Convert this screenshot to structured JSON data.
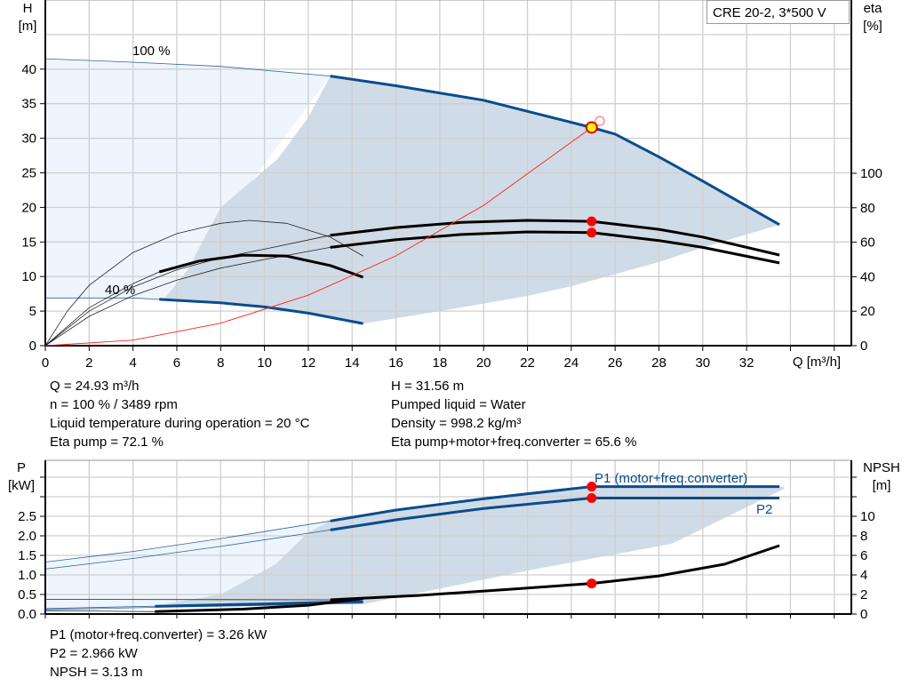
{
  "title": "CRE 20-2, 3*500 V",
  "colors": {
    "head": "#0b4c8c",
    "grid": "#cfcfcf",
    "region_light": "#eef5fd",
    "region_dark": "#cfdbe6",
    "eta": "#000000",
    "system": "#ff2020",
    "marker": "#ff0000",
    "duty_marker": "#ffff00"
  },
  "chart_data": [
    {
      "type": "line",
      "xlabel": "Q [m³/h]",
      "ylabel": "H\n[m]",
      "y2label": "eta\n[%]",
      "xlim": [
        0,
        37
      ],
      "ylim": [
        0,
        50
      ],
      "y2lim": [
        0,
        200
      ],
      "grid": true,
      "x_ticks": [
        "0",
        "2",
        "4",
        "6",
        "8",
        "10",
        "12",
        "14",
        "16",
        "18",
        "20",
        "22",
        "24",
        "26",
        "28",
        "30",
        "32"
      ],
      "y_ticks": [
        "0",
        "5",
        "10",
        "15",
        "20",
        "25",
        "30",
        "35",
        "40"
      ],
      "y2_ticks": [
        "0",
        "20",
        "40",
        "60",
        "80",
        "100"
      ],
      "curve_labels": {
        "max_speed": "100 %",
        "min_speed": "40 %"
      },
      "regions": {
        "light": [
          [
            0,
            41.5
          ],
          [
            4,
            41.0
          ],
          [
            8,
            40.4
          ],
          [
            13,
            39
          ],
          [
            5.4,
            6.7
          ],
          [
            4,
            6.9
          ],
          [
            0,
            6.9
          ]
        ],
        "dark": [
          [
            5.4,
            6.7
          ],
          [
            6.5,
            11
          ],
          [
            8,
            20
          ],
          [
            10.6,
            27
          ],
          [
            12,
            33
          ],
          [
            13,
            39
          ],
          [
            16,
            37.6
          ],
          [
            20,
            35.5
          ],
          [
            24.93,
            31.56
          ],
          [
            26,
            30.6
          ],
          [
            28,
            27.3
          ],
          [
            30,
            23.8
          ],
          [
            33.5,
            17.5
          ],
          [
            30,
            14.2
          ],
          [
            28,
            12.1
          ],
          [
            24,
            8.6
          ],
          [
            22,
            7.2
          ],
          [
            18,
            5
          ],
          [
            14.5,
            3.2
          ],
          [
            12,
            4.7
          ],
          [
            10,
            5.6
          ],
          [
            8,
            6.2
          ]
        ]
      },
      "series": [
        {
          "axis": "H",
          "color": "#0b4c8c",
          "extended": [
            [
              0,
              41.5
            ],
            [
              4,
              41.0
            ],
            [
              8,
              40.4
            ],
            [
              13,
              39
            ]
          ],
          "operating": [
            [
              13,
              39
            ],
            [
              16,
              37.6
            ],
            [
              20,
              35.5
            ],
            [
              24.93,
              31.56
            ],
            [
              26,
              30.6
            ],
            [
              28,
              27.3
            ],
            [
              30,
              23.8
            ],
            [
              33.5,
              17.5
            ]
          ]
        },
        {
          "axis": "H",
          "color": "#0b4c8c",
          "extended": [
            [
              0,
              6.9
            ],
            [
              4,
              6.9
            ],
            [
              5.2,
              6.7
            ]
          ],
          "operating": [
            [
              5.2,
              6.7
            ],
            [
              8,
              6.2
            ],
            [
              10,
              5.6
            ],
            [
              12,
              4.7
            ],
            [
              14.5,
              3.2
            ]
          ]
        },
        {
          "axis": "eta",
          "color": "#000000",
          "extended": [
            [
              0,
              0
            ],
            [
              2,
              20
            ],
            [
              4,
              34
            ],
            [
              6,
              44
            ],
            [
              8,
              51
            ],
            [
              10,
              56
            ],
            [
              13,
              64
            ]
          ],
          "operating": [
            [
              13,
              64
            ],
            [
              16,
              68.5
            ],
            [
              19,
              71.5
            ],
            [
              22,
              72.7
            ],
            [
              24.93,
              72.1
            ],
            [
              28,
              67.5
            ],
            [
              30,
              63
            ],
            [
              33.5,
              52.6
            ]
          ]
        },
        {
          "axis": "eta",
          "color": "#000000",
          "extended": [
            [
              0,
              0
            ],
            [
              2,
              17
            ],
            [
              4,
              29
            ],
            [
              6,
              38
            ],
            [
              8,
              45
            ],
            [
              10,
              50
            ],
            [
              13,
              57
            ]
          ],
          "operating": [
            [
              13,
              57
            ],
            [
              16,
              61.5
            ],
            [
              19,
              64.5
            ],
            [
              22,
              66
            ],
            [
              24.93,
              65.6
            ],
            [
              28,
              61
            ],
            [
              30,
              57
            ],
            [
              33.5,
              48
            ]
          ]
        },
        {
          "axis": "eta",
          "color": "#000000",
          "extended": [
            [
              0,
              0
            ],
            [
              1,
              20
            ],
            [
              2,
              35
            ],
            [
              4,
              54
            ],
            [
              6,
              65
            ],
            [
              8,
              71
            ],
            [
              9.3,
              72.7
            ],
            [
              11,
              71
            ],
            [
              13,
              63
            ],
            [
              14.5,
              52
            ]
          ],
          "operating": []
        },
        {
          "axis": "eta",
          "color": "#000000",
          "extended": [
            [
              0,
              0
            ],
            [
              2,
              22
            ],
            [
              4,
              36
            ],
            [
              5.2,
              42.8
            ]
          ],
          "operating": [
            [
              5.2,
              42.8
            ],
            [
              7,
              49
            ],
            [
              9,
              52.5
            ],
            [
              11,
              52
            ],
            [
              13,
              46.5
            ],
            [
              14.5,
              39.7
            ]
          ]
        },
        {
          "axis": "H",
          "color": "#ff2020",
          "extended": [
            [
              0,
              0
            ],
            [
              4,
              0.8
            ],
            [
              8,
              3.25
            ],
            [
              12,
              7.3
            ],
            [
              16,
              13
            ],
            [
              20,
              20.3
            ],
            [
              24.93,
              31.56
            ]
          ],
          "operating": []
        }
      ],
      "markers": [
        {
          "axis": "H",
          "q": 24.93,
          "value": 31.56,
          "fill": "#ffff00"
        },
        {
          "axis": "H",
          "q": 25.3,
          "value": 32.5,
          "fill": "none"
        },
        {
          "axis": "eta",
          "q": 24.93,
          "value": 72.1,
          "fill": "#ff0000"
        },
        {
          "axis": "eta",
          "q": 24.93,
          "value": 65.6,
          "fill": "#ff0000"
        }
      ]
    },
    {
      "type": "line",
      "ylabel": "P\n[kW]",
      "y2label": "NPSH\n[m]",
      "xlim": [
        0,
        37
      ],
      "ylim": [
        0,
        3.5
      ],
      "y2lim": [
        0,
        14
      ],
      "grid": true,
      "y_ticks": [
        "0.0",
        "0.5",
        "1.0",
        "1.5",
        "2.0",
        "2.5"
      ],
      "y2_ticks": [
        "0",
        "2",
        "4",
        "6",
        "8",
        "10"
      ],
      "curve_labels": {
        "p1": "P1 (motor+freq.converter)",
        "p2": "P2"
      },
      "regions": {
        "light": [
          [
            0,
            1.33
          ],
          [
            4,
            1.6
          ],
          [
            8,
            1.93
          ],
          [
            13,
            2.38
          ],
          [
            12,
            2.09
          ],
          [
            10.5,
            1.27
          ],
          [
            8,
            0.5
          ],
          [
            5.4,
            0.25
          ],
          [
            0,
            0.05
          ]
        ],
        "dark": [
          [
            5.4,
            0.25
          ],
          [
            8,
            0.5
          ],
          [
            10.5,
            1.27
          ],
          [
            12,
            2.09
          ],
          [
            13,
            2.38
          ],
          [
            16,
            2.66
          ],
          [
            20,
            2.95
          ],
          [
            24.93,
            3.26
          ],
          [
            33.7,
            3.26
          ],
          [
            33.7,
            3.2
          ],
          [
            28.6,
            1.8
          ],
          [
            21.9,
            1.1
          ],
          [
            18,
            0.65
          ],
          [
            14.5,
            0.25
          ]
        ]
      },
      "series": [
        {
          "axis": "P",
          "color": "#0b4c8c",
          "extended": [
            [
              0,
              1.33
            ],
            [
              4,
              1.6
            ],
            [
              8,
              1.93
            ],
            [
              13,
              2.38
            ]
          ],
          "operating": [
            [
              13,
              2.38
            ],
            [
              16,
              2.66
            ],
            [
              20,
              2.95
            ],
            [
              24.93,
              3.26
            ],
            [
              26,
              3.26
            ],
            [
              33.5,
              3.26
            ]
          ]
        },
        {
          "axis": "P",
          "color": "#0b4c8c",
          "extended": [
            [
              0,
              1.15
            ],
            [
              4,
              1.42
            ],
            [
              8,
              1.73
            ],
            [
              13,
              2.15
            ]
          ],
          "operating": [
            [
              13,
              2.15
            ],
            [
              16,
              2.41
            ],
            [
              20,
              2.7
            ],
            [
              24.93,
              2.966
            ],
            [
              26,
              2.966
            ],
            [
              33.5,
              2.966
            ]
          ]
        },
        {
          "axis": "P",
          "color": "#0b4c8c",
          "extended": [
            [
              0,
              0.14
            ],
            [
              5,
              0.2
            ]
          ],
          "operating": [
            [
              5,
              0.2
            ],
            [
              10,
              0.26
            ],
            [
              14.5,
              0.32
            ]
          ]
        },
        {
          "axis": "P",
          "color": "#0b4c8c",
          "extended": [
            [
              0,
              0.11
            ],
            [
              5,
              0.17
            ],
            [
              10,
              0.22
            ],
            [
              14.5,
              0.28
            ]
          ],
          "operating": []
        },
        {
          "axis": "NPSH",
          "color": "#000000",
          "extended": [
            [
              0,
              1.5
            ],
            [
              13,
              1.45
            ]
          ],
          "operating": [
            [
              13,
              1.45
            ],
            [
              17,
              1.9
            ],
            [
              21,
              2.5
            ],
            [
              24.93,
              3.13
            ],
            [
              28,
              3.9
            ],
            [
              31,
              5.1
            ],
            [
              33.5,
              7
            ]
          ]
        },
        {
          "axis": "NPSH",
          "color": "#000000",
          "extended": [
            [
              0,
              0.35
            ],
            [
              5,
              0.25
            ]
          ],
          "operating": [
            [
              5,
              0.25
            ],
            [
              9,
              0.5
            ],
            [
              12,
              0.9
            ],
            [
              14.5,
              1.6
            ]
          ]
        }
      ],
      "markers": [
        {
          "axis": "P",
          "q": 24.93,
          "value": 3.26,
          "fill": "#ff0000"
        },
        {
          "axis": "P",
          "q": 24.93,
          "value": 2.966,
          "fill": "#ff0000"
        },
        {
          "axis": "NPSH",
          "q": 24.93,
          "value": 3.13,
          "fill": "#ff0000"
        }
      ]
    }
  ],
  "duty_point": {
    "q": "Q = 24.93 m³/h",
    "n": "n = 100 % / 3489 rpm",
    "temp": "Liquid temperature during operation = 20 °C",
    "eta_pump": "Eta pump = 72.1 %",
    "h": "H = 31.56 m",
    "liquid": "Pumped liquid = Water",
    "density": "Density = 998.2 kg/m³",
    "eta_total": "Eta pump+motor+freq.converter = 65.6 %",
    "p1": "P1 (motor+freq.converter) = 3.26 kW",
    "p2": "P2 = 2.966 kW",
    "npsh": "NPSH = 3.13 m"
  }
}
